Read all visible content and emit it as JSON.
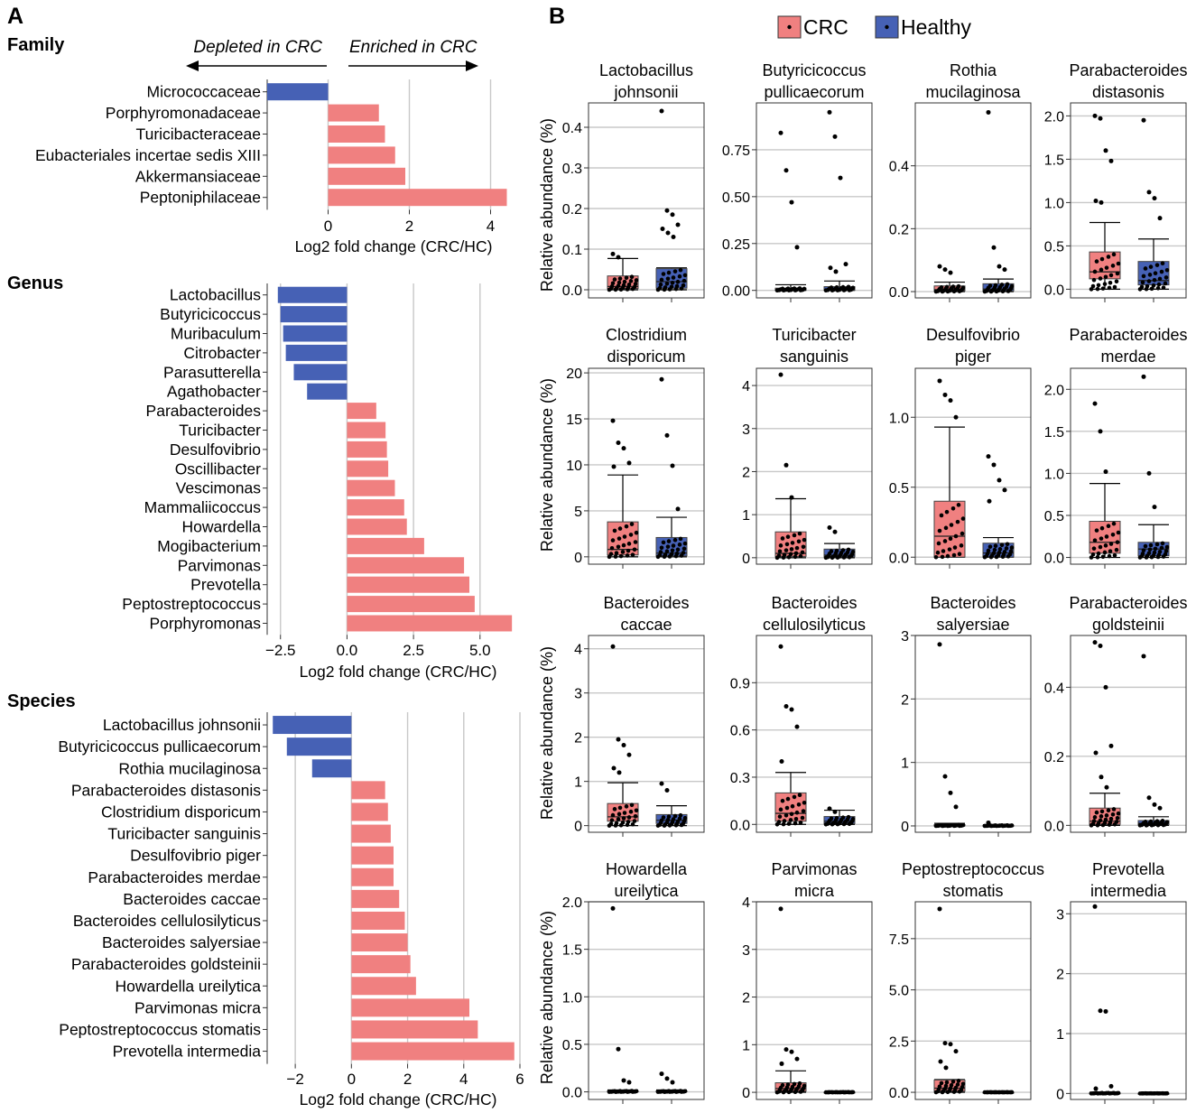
{
  "colors": {
    "crc": "#F08080",
    "healthy": "#4661B5",
    "grid": "#c8c8c8",
    "axis": "#333333"
  },
  "panel_a": {
    "letter": "A",
    "depleted_label": "Depleted in CRC",
    "enriched_label": "Enriched in CRC"
  },
  "panel_b": {
    "letter": "B",
    "legend": [
      {
        "label": "CRC",
        "group": "crc"
      },
      {
        "label": "Healthy",
        "group": "healthy"
      }
    ],
    "ylabel": "Relative abundance (%)"
  },
  "chart_data": [
    {
      "type": "bar",
      "orientation": "horizontal",
      "title": "Family",
      "xlabel": "Log2 fold change (CRC/HC)",
      "xlim": [
        -1.5,
        4.5
      ],
      "xticks": [
        0,
        2,
        4
      ],
      "xtick_labels": [
        "0",
        "2",
        "4"
      ],
      "grid": "x",
      "categories": [
        "Micrococcaceae",
        "Porphyromonadaceae",
        "Turicibacteraceae",
        "Eubacteriales incertae sedis XIII",
        "Akkermansiaceae",
        "Peptoniphilaceae"
      ],
      "values": [
        -1.5,
        1.25,
        1.4,
        1.65,
        1.9,
        4.4
      ]
    },
    {
      "type": "bar",
      "orientation": "horizontal",
      "title": "Genus",
      "xlabel": "Log2 fold change (CRC/HC)",
      "xlim": [
        -3.0,
        6.5
      ],
      "xticks": [
        -2.5,
        0,
        2.5,
        5.0
      ],
      "xtick_labels": [
        "−2.5",
        "0.0",
        "2.5",
        "5.0"
      ],
      "grid": "x",
      "categories": [
        "Lactobacillus",
        "Butyricicoccus",
        "Muribaculum",
        "Citrobacter",
        "Parasutterella",
        "Agathobacter",
        "Parabacteroides",
        "Turicibacter",
        "Desulfovibrio",
        "Oscillibacter",
        "Vescimonas",
        "Mammaliicoccus",
        "Howardella",
        "Mogibacterium",
        "Parvimonas",
        "Prevotella",
        "Peptostreptococcus",
        "Porphyromonas"
      ],
      "values": [
        -2.6,
        -2.5,
        -2.4,
        -2.3,
        -2.0,
        -1.5,
        1.1,
        1.45,
        1.5,
        1.55,
        1.8,
        2.15,
        2.25,
        2.9,
        4.4,
        4.6,
        4.8,
        6.2
      ]
    },
    {
      "type": "bar",
      "orientation": "horizontal",
      "title": "Species",
      "xlabel": "Log2 fold change (CRC/HC)",
      "xlim": [
        -3.0,
        6.0
      ],
      "xticks": [
        -2,
        0,
        2,
        4,
        6
      ],
      "xtick_labels": [
        "−2",
        "0",
        "2",
        "4",
        "6"
      ],
      "grid": "x",
      "categories": [
        "Lactobacillus johnsonii",
        "Butyricicoccus pullicaecorum",
        "Rothia mucilaginosa",
        "Parabacteroides distasonis",
        "Clostridium disporicum",
        "Turicibacter sanguinis",
        "Desulfovibrio piger",
        "Parabacteroides merdae",
        "Bacteroides caccae",
        "Bacteroides cellulosilyticus",
        "Bacteroides salyersiae",
        "Parabacteroides goldsteinii",
        "Howardella ureilytica",
        "Parvimonas micra",
        "Peptostreptococcus stomatis",
        "Prevotella intermedia"
      ],
      "values": [
        -2.8,
        -2.3,
        -1.4,
        1.2,
        1.3,
        1.4,
        1.5,
        1.5,
        1.7,
        1.9,
        2.0,
        2.1,
        2.3,
        4.2,
        4.5,
        5.8
      ]
    },
    {
      "type": "box",
      "title_lines": [
        "Lactobacillus",
        "johnsonii"
      ],
      "ylim": [
        -0.02,
        0.46
      ],
      "yticks": [
        0.0,
        0.1,
        0.2,
        0.3,
        0.4
      ],
      "ytick_labels": [
        "0.0",
        "0.1",
        "0.2",
        "0.3",
        "0.4"
      ],
      "groups": {
        "crc": {
          "q1": 0.003,
          "median": 0.008,
          "q3": 0.034,
          "whisker_low": 0.0,
          "whisker_high": 0.077
        },
        "healthy": {
          "q1": 0.004,
          "median": 0.02,
          "q3": 0.052,
          "whisker_low": 0.0,
          "whisker_high": 0.054
        }
      },
      "outliers": {
        "crc": [
          0.088,
          0.08
        ],
        "healthy": [
          0.44,
          0.195,
          0.185,
          0.16,
          0.15,
          0.14,
          0.13
        ]
      }
    },
    {
      "type": "box",
      "title_lines": [
        "Butyricicoccus",
        "pullicaecorum"
      ],
      "ylim": [
        -0.04,
        1.0
      ],
      "yticks": [
        0.0,
        0.25,
        0.5,
        0.75
      ],
      "ytick_labels": [
        "0.00",
        "0.25",
        "0.50",
        "0.75"
      ],
      "groups": {
        "crc": {
          "q1": 0.0,
          "median": 0.003,
          "q3": 0.012,
          "whisker_low": 0.0,
          "whisker_high": 0.03
        },
        "healthy": {
          "q1": 0.0,
          "median": 0.005,
          "q3": 0.02,
          "whisker_low": 0.0,
          "whisker_high": 0.05
        }
      },
      "outliers": {
        "crc": [
          0.84,
          0.64,
          0.47,
          0.23
        ],
        "healthy": [
          0.95,
          0.82,
          0.6,
          0.14,
          0.12,
          0.1
        ]
      }
    },
    {
      "type": "box",
      "title_lines": [
        "Rothia",
        "mucilaginosa"
      ],
      "ylim": [
        -0.02,
        0.6
      ],
      "yticks": [
        0.0,
        0.2,
        0.4
      ],
      "ytick_labels": [
        "0.0",
        "0.2",
        "0.4"
      ],
      "groups": {
        "crc": {
          "q1": 0.002,
          "median": 0.006,
          "q3": 0.018,
          "whisker_low": 0.0,
          "whisker_high": 0.03
        },
        "healthy": {
          "q1": 0.002,
          "median": 0.008,
          "q3": 0.025,
          "whisker_low": 0.0,
          "whisker_high": 0.04
        }
      },
      "outliers": {
        "crc": [
          0.08,
          0.07,
          0.06
        ],
        "healthy": [
          0.57,
          0.14,
          0.08,
          0.07
        ]
      }
    },
    {
      "type": "box",
      "title_lines": [
        "Parabacteroides",
        "distasonis"
      ],
      "ylim": [
        -0.1,
        2.15
      ],
      "yticks": [
        0.0,
        0.5,
        1.0,
        1.5,
        2.0
      ],
      "ytick_labels": [
        "0.0",
        "0.5",
        "1.0",
        "1.5",
        "2.0"
      ],
      "groups": {
        "crc": {
          "q1": 0.12,
          "median": 0.2,
          "q3": 0.43,
          "whisker_low": 0.0,
          "whisker_high": 0.77
        },
        "healthy": {
          "q1": 0.05,
          "median": 0.1,
          "q3": 0.32,
          "whisker_low": 0.0,
          "whisker_high": 0.58
        }
      },
      "outliers": {
        "crc": [
          2.0,
          1.97,
          1.6,
          1.48,
          1.02,
          1.0
        ],
        "healthy": [
          1.95,
          1.12,
          1.05,
          0.82
        ]
      }
    },
    {
      "type": "box",
      "title_lines": [
        "Clostridium",
        "disporicum"
      ],
      "ylim": [
        -0.8,
        20.5
      ],
      "yticks": [
        0,
        5,
        10,
        15,
        20
      ],
      "ytick_labels": [
        "0",
        "5",
        "10",
        "15",
        "20"
      ],
      "groups": {
        "crc": {
          "q1": 0.2,
          "median": 0.8,
          "q3": 3.8,
          "whisker_low": 0.0,
          "whisker_high": 8.9
        },
        "healthy": {
          "q1": 0.1,
          "median": 0.4,
          "q3": 2.1,
          "whisker_low": 0.0,
          "whisker_high": 4.3
        }
      },
      "outliers": {
        "crc": [
          14.8,
          12.4,
          11.8,
          10.2,
          9.8
        ],
        "healthy": [
          19.3,
          13.2,
          9.9,
          5.2
        ]
      }
    },
    {
      "type": "box",
      "title_lines": [
        "Turicibacter",
        "sanguinis"
      ],
      "ylim": [
        -0.15,
        4.4
      ],
      "yticks": [
        0,
        1,
        2,
        3,
        4
      ],
      "ytick_labels": [
        "0",
        "1",
        "2",
        "3",
        "4"
      ],
      "groups": {
        "crc": {
          "q1": 0.03,
          "median": 0.1,
          "q3": 0.6,
          "whisker_low": 0.0,
          "whisker_high": 1.37
        },
        "healthy": {
          "q1": 0.02,
          "median": 0.06,
          "q3": 0.2,
          "whisker_low": 0.0,
          "whisker_high": 0.33
        }
      },
      "outliers": {
        "crc": [
          4.25,
          2.15,
          1.4
        ],
        "healthy": [
          0.7,
          0.6
        ]
      }
    },
    {
      "type": "box",
      "title_lines": [
        "Desulfovibrio",
        "piger"
      ],
      "ylim": [
        -0.05,
        1.35
      ],
      "yticks": [
        0.0,
        0.5,
        1.0
      ],
      "ytick_labels": [
        "0.0",
        "0.5",
        "1.0"
      ],
      "groups": {
        "crc": {
          "q1": 0.0,
          "median": 0.15,
          "q3": 0.4,
          "whisker_low": 0.0,
          "whisker_high": 0.93
        },
        "healthy": {
          "q1": 0.0,
          "median": 0.03,
          "q3": 0.1,
          "whisker_low": 0.0,
          "whisker_high": 0.14
        }
      },
      "outliers": {
        "crc": [
          1.26,
          1.16,
          1.12,
          1.0
        ],
        "healthy": [
          0.72,
          0.66,
          0.55,
          0.48,
          0.4
        ]
      }
    },
    {
      "type": "box",
      "title_lines": [
        "Parabacteroides",
        "merdae"
      ],
      "ylim": [
        -0.08,
        2.25
      ],
      "yticks": [
        0.0,
        0.5,
        1.0,
        1.5,
        2.0
      ],
      "ytick_labels": [
        "0.0",
        "0.5",
        "1.0",
        "1.5",
        "2.0"
      ],
      "groups": {
        "crc": {
          "q1": 0.05,
          "median": 0.18,
          "q3": 0.43,
          "whisker_low": 0.0,
          "whisker_high": 0.88
        },
        "healthy": {
          "q1": 0.02,
          "median": 0.1,
          "q3": 0.18,
          "whisker_low": 0.0,
          "whisker_high": 0.39
        }
      },
      "outliers": {
        "crc": [
          1.83,
          1.5,
          1.02
        ],
        "healthy": [
          2.15,
          1.0,
          0.6
        ]
      }
    },
    {
      "type": "box",
      "title_lines": [
        "Bacteroides",
        "caccae"
      ],
      "ylim": [
        -0.15,
        4.3
      ],
      "yticks": [
        0,
        1,
        2,
        3,
        4
      ],
      "ytick_labels": [
        "0",
        "1",
        "2",
        "3",
        "4"
      ],
      "groups": {
        "crc": {
          "q1": 0.1,
          "median": 0.2,
          "q3": 0.5,
          "whisker_low": 0.0,
          "whisker_high": 0.97
        },
        "healthy": {
          "q1": 0.05,
          "median": 0.12,
          "q3": 0.25,
          "whisker_low": 0.0,
          "whisker_high": 0.45
        }
      },
      "outliers": {
        "crc": [
          4.05,
          1.95,
          1.82,
          1.6,
          1.3,
          1.2
        ],
        "healthy": [
          0.95,
          0.8
        ]
      }
    },
    {
      "type": "box",
      "title_lines": [
        "Bacteroides",
        "cellulosilyticus"
      ],
      "ylim": [
        -0.05,
        1.2
      ],
      "yticks": [
        0.0,
        0.3,
        0.6,
        0.9
      ],
      "ytick_labels": [
        "0.0",
        "0.3",
        "0.6",
        "0.9"
      ],
      "groups": {
        "crc": {
          "q1": 0.02,
          "median": 0.07,
          "q3": 0.2,
          "whisker_low": 0.0,
          "whisker_high": 0.33
        },
        "healthy": {
          "q1": 0.005,
          "median": 0.02,
          "q3": 0.05,
          "whisker_low": 0.0,
          "whisker_high": 0.09
        }
      },
      "outliers": {
        "crc": [
          1.13,
          0.75,
          0.73,
          0.62,
          0.4
        ],
        "healthy": [
          0.1,
          0.08
        ]
      }
    },
    {
      "type": "box",
      "title_lines": [
        "Bacteroides",
        "salyersiae"
      ],
      "ylim": [
        -0.1,
        3.0
      ],
      "yticks": [
        0,
        1,
        2,
        3
      ],
      "ytick_labels": [
        "0",
        "1",
        "2",
        "3"
      ],
      "groups": {
        "crc": {
          "q1": 0.0,
          "median": 0.005,
          "q3": 0.02,
          "whisker_low": 0.0,
          "whisker_high": 0.04
        },
        "healthy": {
          "q1": 0.0,
          "median": 0.003,
          "q3": 0.01,
          "whisker_low": 0.0,
          "whisker_high": 0.02
        }
      },
      "outliers": {
        "crc": [
          2.86,
          0.78,
          0.52,
          0.3
        ],
        "healthy": [
          0.05
        ]
      }
    },
    {
      "type": "box",
      "title_lines": [
        "Parabacteroides",
        "goldsteinii"
      ],
      "ylim": [
        -0.02,
        0.55
      ],
      "yticks": [
        0.0,
        0.2,
        0.4
      ],
      "ytick_labels": [
        "0.0",
        "0.2",
        "0.4"
      ],
      "groups": {
        "crc": {
          "q1": 0.003,
          "median": 0.012,
          "q3": 0.05,
          "whisker_low": 0.0,
          "whisker_high": 0.093
        },
        "healthy": {
          "q1": 0.002,
          "median": 0.006,
          "q3": 0.014,
          "whisker_low": 0.0,
          "whisker_high": 0.025
        }
      },
      "outliers": {
        "crc": [
          0.53,
          0.52,
          0.4,
          0.23,
          0.21,
          0.14,
          0.11
        ],
        "healthy": [
          0.49,
          0.08,
          0.06,
          0.05
        ]
      }
    },
    {
      "type": "box",
      "title_lines": [
        "Howardella",
        "ureilytica"
      ],
      "ylim": [
        -0.08,
        2.0
      ],
      "yticks": [
        0.0,
        0.5,
        1.0,
        1.5,
        2.0
      ],
      "ytick_labels": [
        "0.0",
        "0.5",
        "1.0",
        "1.5",
        "2.0"
      ],
      "groups": {
        "crc": {
          "q1": 0.0,
          "median": 0.003,
          "q3": 0.01,
          "whisker_low": 0.0,
          "whisker_high": 0.02
        },
        "healthy": {
          "q1": 0.0,
          "median": 0.003,
          "q3": 0.01,
          "whisker_low": 0.0,
          "whisker_high": 0.02
        }
      },
      "outliers": {
        "crc": [
          1.93,
          0.45,
          0.12,
          0.1
        ],
        "healthy": [
          0.19,
          0.14,
          0.1
        ]
      }
    },
    {
      "type": "box",
      "title_lines": [
        "Parvimonas",
        "micra"
      ],
      "ylim": [
        -0.15,
        4.0
      ],
      "yticks": [
        0,
        1,
        2,
        3,
        4
      ],
      "ytick_labels": [
        "0",
        "1",
        "2",
        "3",
        "4"
      ],
      "groups": {
        "crc": {
          "q1": 0.02,
          "median": 0.08,
          "q3": 0.2,
          "whisker_low": 0.0,
          "whisker_high": 0.45
        },
        "healthy": {
          "q1": 0.0,
          "median": 0.002,
          "q3": 0.005,
          "whisker_low": 0.0,
          "whisker_high": 0.01
        }
      },
      "outliers": {
        "crc": [
          3.85,
          0.9,
          0.85,
          0.7,
          0.6
        ],
        "healthy": []
      }
    },
    {
      "type": "box",
      "title_lines": [
        "Peptostreptococcus",
        "stomatis"
      ],
      "ylim": [
        -0.35,
        9.3
      ],
      "yticks": [
        0.0,
        2.5,
        5.0,
        7.5
      ],
      "ytick_labels": [
        "0.0",
        "2.5",
        "5.0",
        "7.5"
      ],
      "groups": {
        "crc": {
          "q1": 0.05,
          "median": 0.2,
          "q3": 0.6,
          "whisker_low": 0.0,
          "whisker_high": 0.62
        },
        "healthy": {
          "q1": 0.0,
          "median": 0.002,
          "q3": 0.005,
          "whisker_low": 0.0,
          "whisker_high": 0.01
        }
      },
      "outliers": {
        "crc": [
          8.95,
          2.4,
          2.35,
          2.0,
          1.5,
          1.2
        ],
        "healthy": []
      }
    },
    {
      "type": "box",
      "title_lines": [
        "Prevotella",
        "intermedia"
      ],
      "ylim": [
        -0.1,
        3.2
      ],
      "yticks": [
        0,
        1,
        2,
        3
      ],
      "ytick_labels": [
        "0",
        "1",
        "2",
        "3"
      ],
      "groups": {
        "crc": {
          "q1": 0.0,
          "median": 0.003,
          "q3": 0.01,
          "whisker_low": 0.0,
          "whisker_high": 0.02
        },
        "healthy": {
          "q1": 0.0,
          "median": 0.001,
          "q3": 0.003,
          "whisker_low": 0.0,
          "whisker_high": 0.005
        }
      },
      "outliers": {
        "crc": [
          3.12,
          1.38,
          1.37,
          0.12,
          0.08
        ],
        "healthy": []
      }
    }
  ]
}
